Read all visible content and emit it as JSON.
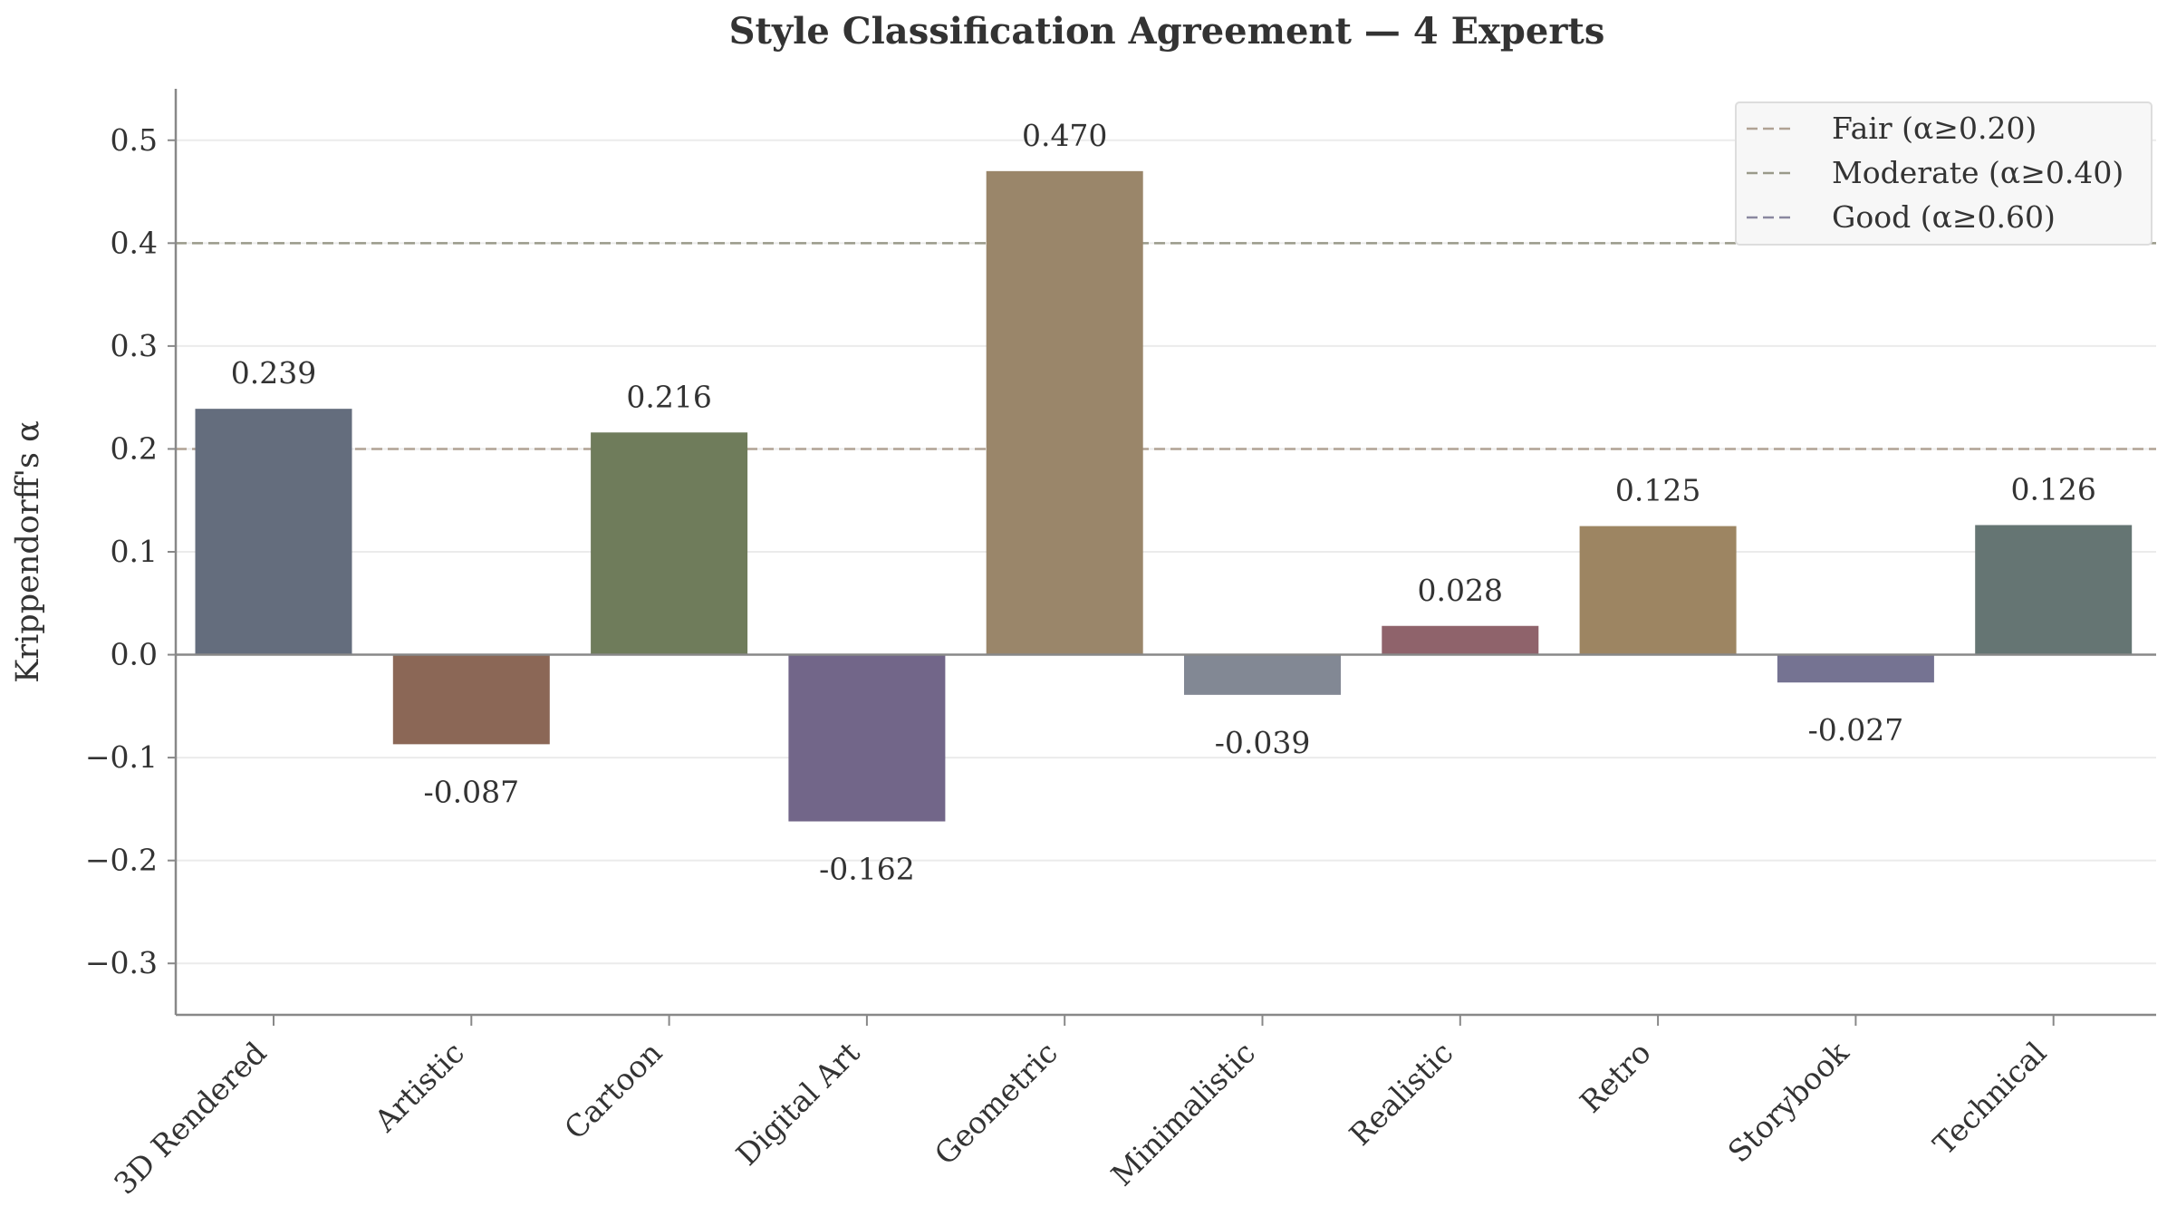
{
  "chart_data": {
    "type": "bar",
    "title": "Style Classification Agreement — 4 Experts",
    "xlabel": "",
    "ylabel": "Krippendorff's α",
    "ylim": [
      -0.35,
      0.55
    ],
    "yticks": [
      -0.3,
      -0.2,
      -0.1,
      0.0,
      0.1,
      0.2,
      0.3,
      0.4,
      0.5
    ],
    "ytick_labels": [
      "−0.3",
      "−0.2",
      "−0.1",
      "0.0",
      "0.1",
      "0.2",
      "0.3",
      "0.4",
      "0.5"
    ],
    "grid": "y",
    "categories": [
      "3D Rendered",
      "Artistic",
      "Cartoon",
      "Digital Art",
      "Geometric",
      "Minimalistic",
      "Realistic",
      "Retro",
      "Storybook",
      "Technical"
    ],
    "values": [
      0.239,
      -0.087,
      0.216,
      -0.162,
      0.47,
      -0.039,
      0.028,
      0.125,
      -0.027,
      0.126
    ],
    "value_labels": [
      "0.239",
      "-0.087",
      "0.216",
      "-0.162",
      "0.470",
      "-0.039",
      "0.028",
      "0.125",
      "-0.027",
      "0.126"
    ],
    "colors": [
      "#646d7d",
      "#8b6756",
      "#6f7c5b",
      "#726689",
      "#9a866a",
      "#828894",
      "#8f636b",
      "#9d8562",
      "#757392",
      "#657573"
    ],
    "reference_lines": [
      {
        "label": "Fair (α≥0.20)",
        "value": 0.2,
        "color": "#b0a294"
      },
      {
        "label": "Moderate (α≥0.40)",
        "value": 0.4,
        "color": "#9a9a8a"
      },
      {
        "label": "Good (α≥0.60)",
        "value": 0.6,
        "color": "#8a88a0"
      }
    ],
    "legend_position": "top-right"
  }
}
